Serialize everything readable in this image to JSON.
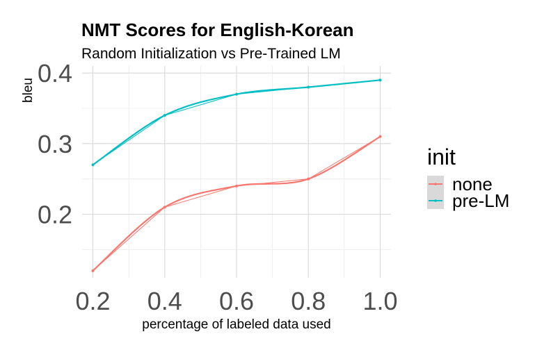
{
  "chart_data": {
    "type": "line",
    "title": "NMT Scores for English-Korean",
    "subtitle": "Random Initialization vs Pre-Trained LM",
    "xlabel": "percentage of labeled data used",
    "ylabel": "bleu",
    "x": [
      0.2,
      0.4,
      0.6,
      0.8,
      1.0
    ],
    "xlim": [
      0.17,
      1.03
    ],
    "ylim": [
      0.11,
      0.41
    ],
    "x_ticks": [
      "0.2",
      "0.4",
      "0.6",
      "0.8",
      "1.0"
    ],
    "y_ticks": [
      "0.2",
      "0.3",
      "0.4"
    ],
    "grid": true,
    "legend_position": "right",
    "legend_title": "init",
    "series": [
      {
        "name": "none",
        "color": "#F8766D",
        "values": [
          0.12,
          0.21,
          0.24,
          0.25,
          0.31
        ]
      },
      {
        "name": "pre-LM",
        "color": "#00BFC4",
        "values": [
          0.27,
          0.34,
          0.37,
          0.38,
          0.39
        ]
      }
    ]
  }
}
